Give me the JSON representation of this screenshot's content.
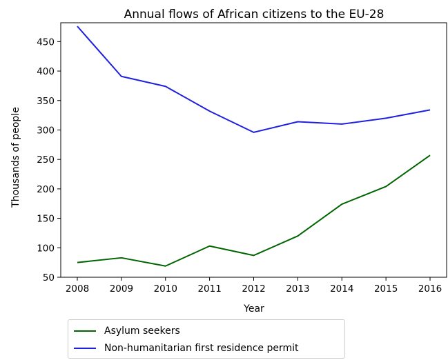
{
  "chart_data": {
    "type": "line",
    "title": "Annual flows of African citizens to the EU-28",
    "xlabel": "Year",
    "ylabel": "Thousands of people",
    "x": [
      2008,
      2009,
      2010,
      2011,
      2012,
      2013,
      2014,
      2015,
      2016
    ],
    "xticks": [
      "2008",
      "2009",
      "2010",
      "2011",
      "2012",
      "2013",
      "2014",
      "2015",
      "2016"
    ],
    "yticks": [
      "50",
      "100",
      "150",
      "200",
      "250",
      "300",
      "350",
      "400",
      "450"
    ],
    "ylim": [
      50,
      482
    ],
    "grid": false,
    "legend_position": "below",
    "series": [
      {
        "name": "Asylum seekers",
        "color": "#006400",
        "values": [
          75,
          83,
          69,
          103,
          87,
          120,
          174,
          204,
          257
        ]
      },
      {
        "name": "Non-humanitarian first residence permit",
        "color": "#1f1fe0",
        "values": [
          476,
          391,
          374,
          332,
          296,
          314,
          310,
          320,
          334
        ]
      }
    ]
  }
}
